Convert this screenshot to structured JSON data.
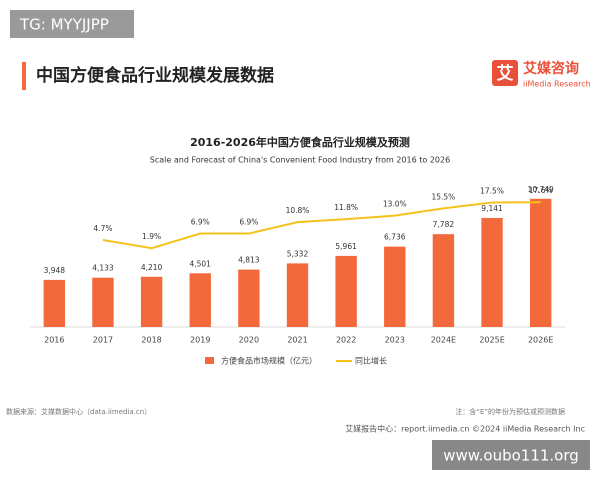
{
  "watermark_top": "TG: MYYJJPP",
  "header": {
    "title": "中国方便食品行业规模发展数据",
    "logo_mark": "艾",
    "logo_name": "艾媒咨询",
    "logo_sub": "iiMedia Research"
  },
  "chart_data": {
    "type": "bar-line",
    "title": "2016-2026年中国方便食品行业规模及预测",
    "subtitle": "Scale and Forecast of China's Convenient Food Industry from 2016 to 2026",
    "categories": [
      "2016",
      "2017",
      "2018",
      "2019",
      "2020",
      "2021",
      "2022",
      "2023",
      "2024E",
      "2025E",
      "2026E"
    ],
    "series": [
      {
        "name": "方便食品市场规模（亿元）",
        "color": "#f26a3c",
        "type": "bar",
        "values": [
          3948,
          4133,
          4210,
          4501,
          4813,
          5332,
          5961,
          6736,
          7782,
          9141,
          10749
        ],
        "value_labels": [
          "3,948",
          "4,133",
          "4,210",
          "4,501",
          "4,813",
          "5,332",
          "5,961",
          "6,736",
          "7,782",
          "9,141",
          "10,749"
        ]
      },
      {
        "name": "同比增长",
        "color": "#f4c21d",
        "type": "line",
        "axis": "y2",
        "values": [
          null,
          4.7,
          1.9,
          6.9,
          6.9,
          10.8,
          11.8,
          13.0,
          15.5,
          17.5,
          17.6
        ],
        "value_labels": [
          null,
          "4.7%",
          "1.9%",
          "6.9%",
          "6.9%",
          "10.8%",
          "11.8%",
          "13.0%",
          "15.5%",
          "17.5%",
          "17.6%"
        ]
      }
    ],
    "ylim": [
      0,
      14000
    ],
    "y2lim": [
      -25,
      32
    ],
    "legend": "bottom"
  },
  "footer": {
    "source": "数据来源：艾媒数据中心（data.iimedia.cn）",
    "note": "注：含“E”的年份为预估或预测数据",
    "copyright": "艾媒报告中心：report.iimedia.cn  ©2024  iiMedia Research Inc"
  },
  "watermark_bottom": "www.oubo111.org"
}
